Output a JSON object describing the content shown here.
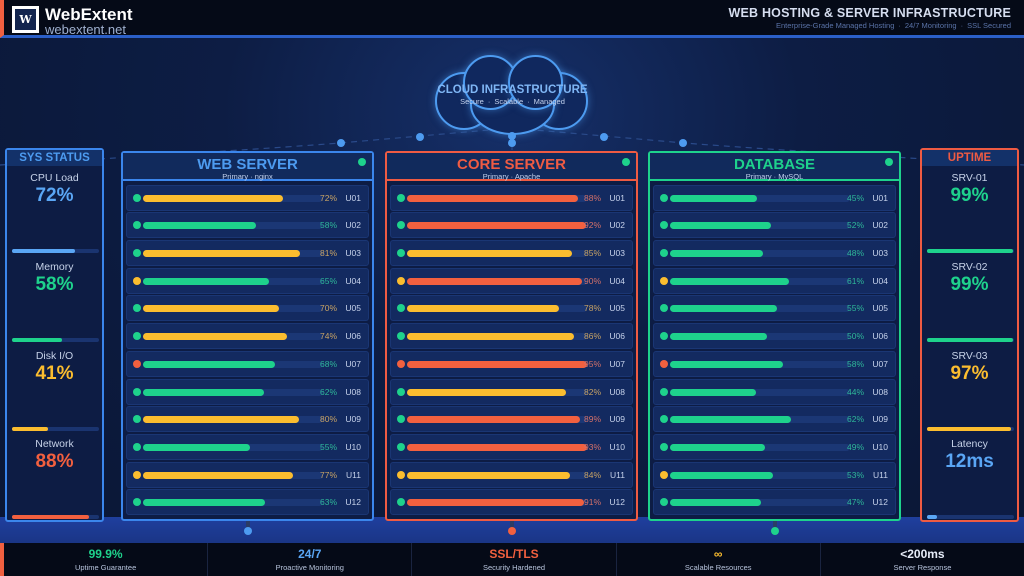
{
  "header": {
    "logo_glyph": "W",
    "brand": "WebExtent",
    "url": "webextent.net",
    "title": "WEB HOSTING & SERVER INFRASTRUCTURE",
    "subtitle_items": [
      "Enterprise-Grade Managed Hosting",
      "24/7 Monitoring",
      "SSL Secured"
    ],
    "separator": "·"
  },
  "cloud": {
    "title": "CLOUD INFRASTRUCTURE",
    "tags": [
      "Secure",
      "Scalable",
      "Managed"
    ],
    "separator": "·"
  },
  "colors": {
    "blue": "#4d9bf0",
    "green": "#1ed28c",
    "yellow": "#fbbd2f",
    "red": "#f2603f",
    "background": "#0b1530"
  },
  "sys_status": {
    "title": "SYS STATUS",
    "metrics": [
      {
        "label": "CPU Load",
        "value": "72%",
        "percent": 72,
        "color": "#5aa6f5"
      },
      {
        "label": "Memory",
        "value": "58%",
        "percent": 58,
        "color": "#1ed28c"
      },
      {
        "label": "Disk I/O",
        "value": "41%",
        "percent": 41,
        "color": "#fbbd2f"
      },
      {
        "label": "Network",
        "value": "88%",
        "percent": 88,
        "color": "#f2603f"
      }
    ]
  },
  "uptime": {
    "title": "UPTIME",
    "metrics": [
      {
        "label": "SRV-01",
        "value": "99%",
        "percent": 99,
        "color": "#1ed28c"
      },
      {
        "label": "SRV-02",
        "value": "99%",
        "percent": 99,
        "color": "#1ed28c"
      },
      {
        "label": "SRV-03",
        "value": "97%",
        "percent": 97,
        "color": "#fbbd2f"
      },
      {
        "label": "Latency",
        "value": "12ms",
        "percent": 12,
        "color": "#5aa6f5"
      }
    ]
  },
  "servers": [
    {
      "title": "WEB SERVER",
      "subtitle": "Primary · nginx",
      "color": "#3b86ec",
      "title_color": "#4d9bf0",
      "status": "online",
      "units": [
        {
          "unit": "U01",
          "percent": 72,
          "status": "green"
        },
        {
          "unit": "U02",
          "percent": 58,
          "status": "green"
        },
        {
          "unit": "U03",
          "percent": 81,
          "status": "green"
        },
        {
          "unit": "U04",
          "percent": 65,
          "status": "yellow"
        },
        {
          "unit": "U05",
          "percent": 70,
          "status": "green"
        },
        {
          "unit": "U06",
          "percent": 74,
          "status": "green"
        },
        {
          "unit": "U07",
          "percent": 68,
          "status": "red"
        },
        {
          "unit": "U08",
          "percent": 62,
          "status": "green"
        },
        {
          "unit": "U09",
          "percent": 80,
          "status": "green"
        },
        {
          "unit": "U10",
          "percent": 55,
          "status": "green"
        },
        {
          "unit": "U11",
          "percent": 77,
          "status": "yellow"
        },
        {
          "unit": "U12",
          "percent": 63,
          "status": "green"
        }
      ]
    },
    {
      "title": "CORE SERVER",
      "subtitle": "Primary · Apache",
      "color": "#ef5b43",
      "title_color": "#ef5b43",
      "status": "online",
      "units": [
        {
          "unit": "U01",
          "percent": 88,
          "status": "green"
        },
        {
          "unit": "U02",
          "percent": 92,
          "status": "green"
        },
        {
          "unit": "U03",
          "percent": 85,
          "status": "green"
        },
        {
          "unit": "U04",
          "percent": 90,
          "status": "yellow"
        },
        {
          "unit": "U05",
          "percent": 78,
          "status": "green"
        },
        {
          "unit": "U06",
          "percent": 86,
          "status": "green"
        },
        {
          "unit": "U07",
          "percent": 95,
          "status": "red"
        },
        {
          "unit": "U08",
          "percent": 82,
          "status": "green"
        },
        {
          "unit": "U09",
          "percent": 89,
          "status": "green"
        },
        {
          "unit": "U10",
          "percent": 93,
          "status": "green"
        },
        {
          "unit": "U11",
          "percent": 84,
          "status": "yellow"
        },
        {
          "unit": "U12",
          "percent": 91,
          "status": "green"
        }
      ]
    },
    {
      "title": "DATABASE",
      "subtitle": "Primary · MySQL",
      "color": "#1ed28c",
      "title_color": "#1ed28c",
      "status": "online",
      "units": [
        {
          "unit": "U01",
          "percent": 45,
          "status": "green"
        },
        {
          "unit": "U02",
          "percent": 52,
          "status": "green"
        },
        {
          "unit": "U03",
          "percent": 48,
          "status": "green"
        },
        {
          "unit": "U04",
          "percent": 61,
          "status": "yellow"
        },
        {
          "unit": "U05",
          "percent": 55,
          "status": "green"
        },
        {
          "unit": "U06",
          "percent": 50,
          "status": "green"
        },
        {
          "unit": "U07",
          "percent": 58,
          "status": "red"
        },
        {
          "unit": "U08",
          "percent": 44,
          "status": "green"
        },
        {
          "unit": "U09",
          "percent": 62,
          "status": "green"
        },
        {
          "unit": "U10",
          "percent": 49,
          "status": "green"
        },
        {
          "unit": "U11",
          "percent": 53,
          "status": "yellow"
        },
        {
          "unit": "U12",
          "percent": 47,
          "status": "green"
        }
      ]
    }
  ],
  "footer": {
    "stats": [
      {
        "value": "99.9%",
        "label": "Uptime Guarantee",
        "color": "#1ed28c"
      },
      {
        "value": "24/7",
        "label": "Proactive Monitoring",
        "color": "#5aa6f5"
      },
      {
        "value": "SSL/TLS",
        "label": "Security Hardened",
        "color": "#f2603f"
      },
      {
        "value": "∞",
        "label": "Scalable Resources",
        "color": "#fbbd2f"
      },
      {
        "value": "<200ms",
        "label": "Server Response",
        "color": "#e6ecf8"
      }
    ]
  }
}
